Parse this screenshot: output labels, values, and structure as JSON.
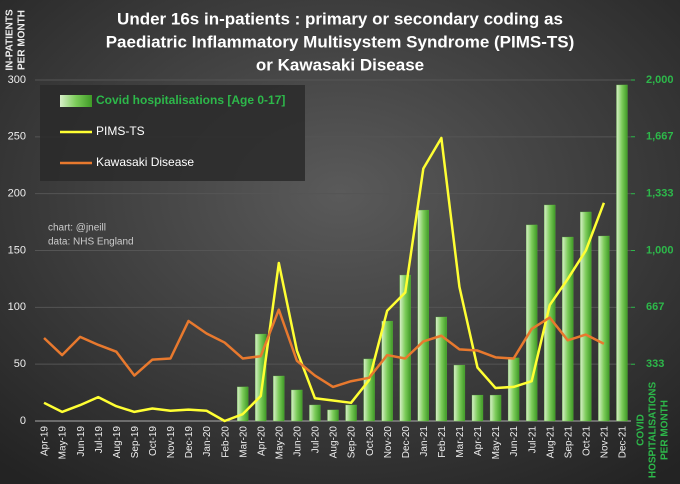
{
  "chart_data": {
    "type": "combo",
    "title": [
      "Under 16s in-patients : primary or secondary coding as",
      "Paediatric Inflammatory Multisystem Syndrome (PIMS-TS)",
      "or Kawasaki Disease"
    ],
    "ylabel": [
      "IN-PATIENTS",
      "PER MONTH"
    ],
    "y2label": [
      "COVID",
      "HOSPITALISATIONS",
      "PER MONTH"
    ],
    "annotations": [
      "chart: @jneill",
      "data: NHS England"
    ],
    "categories": [
      "Apr-19",
      "May-19",
      "Jun-19",
      "Jul-19",
      "Aug-19",
      "Sep-19",
      "Oct-19",
      "Nov-19",
      "Dec-19",
      "Jan-20",
      "Feb-20",
      "Mar-20",
      "Apr-20",
      "May-20",
      "Jun-20",
      "Jul-20",
      "Aug-20",
      "Sep-20",
      "Oct-20",
      "Nov-20",
      "Dec-20",
      "Jan-21",
      "Feb-21",
      "Mar-21",
      "Apr-21",
      "May-21",
      "Jun-21",
      "Jul-21",
      "Aug-21",
      "Sep-21",
      "Oct-21",
      "Nov-21",
      "Dec-21"
    ],
    "series": [
      {
        "name": "Covid hospitalisations [Age 0-17]",
        "type": "bar",
        "axis": "y2",
        "color": "#5fb83f",
        "values": [
          null,
          null,
          null,
          null,
          null,
          null,
          null,
          null,
          null,
          null,
          null,
          200,
          510,
          264,
          182,
          94,
          65,
          94,
          364,
          586,
          856,
          1237,
          610,
          328,
          152,
          152,
          370,
          1150,
          1267,
          1079,
          1226,
          1085,
          1971
        ]
      },
      {
        "name": "PIMS-TS",
        "type": "line",
        "color": "#ffff33",
        "values": [
          16,
          8,
          14,
          21,
          13,
          8,
          11,
          9,
          10,
          9,
          0,
          6,
          22,
          139,
          62,
          20,
          18,
          16,
          36,
          97,
          113,
          222,
          249,
          118,
          47,
          29,
          30,
          35,
          102,
          125,
          150,
          192,
          null
        ]
      },
      {
        "name": "Kawasaki Disease",
        "type": "line",
        "color": "#e8792e",
        "values": [
          73,
          58,
          74,
          67,
          61,
          40,
          54,
          55,
          88,
          77,
          69,
          55,
          57,
          98,
          53,
          40,
          30,
          35,
          38,
          58,
          55,
          70,
          75,
          63,
          62,
          56,
          55,
          81,
          91,
          71,
          76,
          68,
          null
        ]
      }
    ],
    "ylim": [
      0,
      300
    ],
    "yticks": [
      0,
      50,
      100,
      150,
      200,
      250,
      300
    ],
    "y2lim": [
      0,
      2000
    ],
    "y2ticks": [
      {
        "value": 333,
        "label": "333"
      },
      {
        "value": 667,
        "label": "667"
      },
      {
        "value": 1000,
        "label": "1,000"
      },
      {
        "value": 1333,
        "label": "1,333"
      },
      {
        "value": 1667,
        "label": "1,667"
      },
      {
        "value": 2000,
        "label": "2,000"
      }
    ],
    "grid": true,
    "legend": "top-left"
  }
}
